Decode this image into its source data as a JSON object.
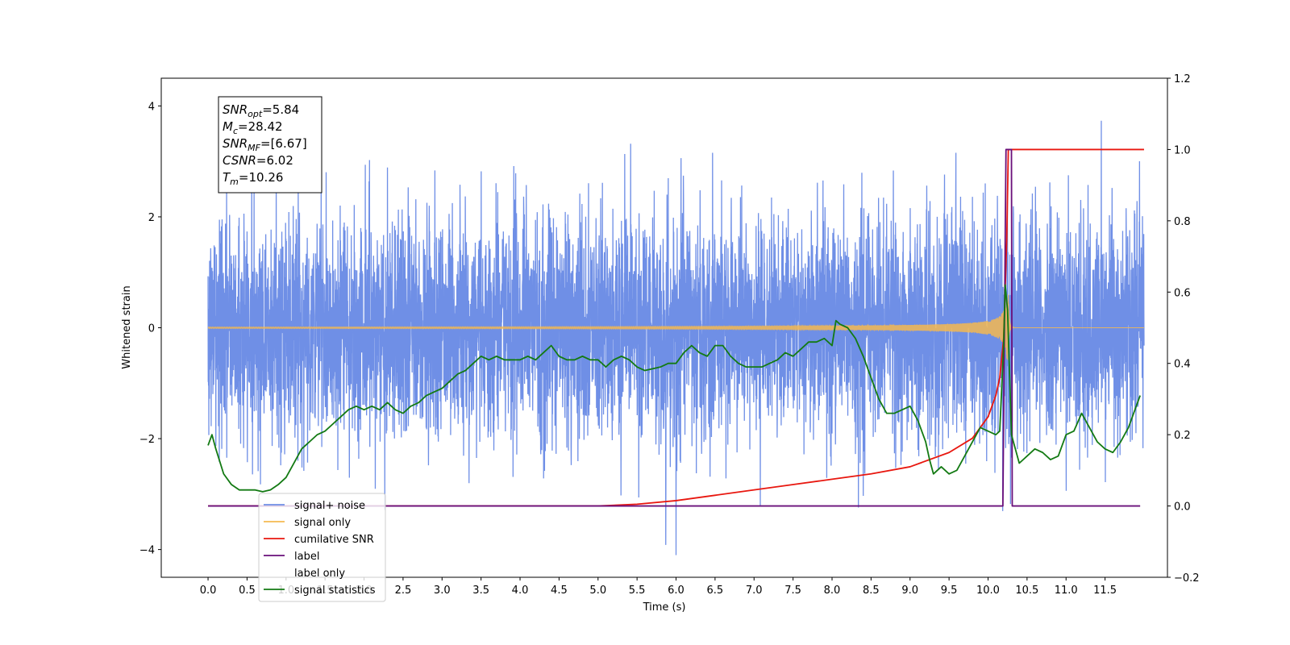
{
  "chart_data": {
    "type": "line",
    "title": "",
    "xlabel": "Time (s)",
    "ylabel": "Whitened strain",
    "y2label": "",
    "xlim": [
      -0.6,
      12.3
    ],
    "ylim": [
      -4.5,
      4.5
    ],
    "y2lim": [
      -0.2,
      1.2
    ],
    "xticks": [
      0.0,
      0.5,
      1.0,
      1.5,
      2.0,
      2.5,
      3.0,
      3.5,
      4.0,
      4.5,
      5.0,
      5.5,
      6.0,
      6.5,
      7.0,
      7.5,
      8.0,
      8.5,
      9.0,
      9.5,
      10.0,
      10.5,
      11.0,
      11.5
    ],
    "xtick_labels": [
      "0.0",
      "0.5",
      "1.0",
      "1.5",
      "2.0",
      "2.5",
      "3.0",
      "3.5",
      "4.0",
      "4.5",
      "5.0",
      "5.5",
      "6.0",
      "6.5",
      "7.0",
      "7.5",
      "8.0",
      "8.5",
      "9.0",
      "9.5",
      "10.0",
      "10.5",
      "11.0",
      "11.5"
    ],
    "yticks": [
      -4,
      -2,
      0,
      2,
      4
    ],
    "ytick_labels": [
      "−4",
      "−2",
      "0",
      "2",
      "4"
    ],
    "y2ticks": [
      -0.2,
      0.0,
      0.2,
      0.4,
      0.6,
      0.8,
      1.0,
      1.2
    ],
    "y2tick_labels": [
      "−0.2",
      "0.0",
      "0.2",
      "0.4",
      "0.6",
      "0.8",
      "1.0",
      "1.2"
    ],
    "grid": false,
    "legend_position": "lower-left",
    "series": [
      {
        "name": "signal+ noise",
        "axis": "left",
        "color": "#6f8fe6",
        "kind": "gaussian-noise",
        "x_range": [
          0.0,
          12.0
        ],
        "mean": 0.0,
        "std": 1.0,
        "approx_range": [
          -4.1,
          4.1
        ]
      },
      {
        "name": "signal only",
        "axis": "left",
        "color": "#f5b950",
        "kind": "chirp",
        "x_range": [
          0.0,
          12.0
        ],
        "merger_time": 10.26,
        "peak_amplitude": 0.6
      },
      {
        "name": "cumilative SNR",
        "axis": "right",
        "color": "#e8170f",
        "x": [
          0.0,
          5.0,
          5.5,
          6.0,
          6.5,
          7.0,
          7.5,
          8.0,
          8.5,
          9.0,
          9.5,
          9.8,
          10.0,
          10.1,
          10.15,
          10.2,
          10.24,
          10.26,
          12.0
        ],
        "values": [
          0.0,
          0.0,
          0.005,
          0.015,
          0.03,
          0.045,
          0.06,
          0.075,
          0.09,
          0.11,
          0.15,
          0.19,
          0.25,
          0.31,
          0.36,
          0.47,
          0.75,
          1.0,
          1.0
        ]
      },
      {
        "name": "label",
        "axis": "right",
        "color": "#6a0f7a",
        "x": [
          0.0,
          10.19,
          10.23,
          10.3,
          10.31,
          11.95
        ],
        "values": [
          0.0,
          0.0,
          1.0,
          1.0,
          0.0,
          0.0
        ]
      },
      {
        "name": "label only",
        "axis": "right",
        "color": "#9a9a9a",
        "hidden": true
      },
      {
        "name": "signal statistics",
        "axis": "right",
        "color": "#137a13",
        "x": [
          0.0,
          0.05,
          0.1,
          0.2,
          0.3,
          0.4,
          0.5,
          0.6,
          0.7,
          0.8,
          0.9,
          1.0,
          1.1,
          1.2,
          1.3,
          1.4,
          1.5,
          1.6,
          1.7,
          1.8,
          1.9,
          2.0,
          2.1,
          2.2,
          2.3,
          2.4,
          2.5,
          2.6,
          2.7,
          2.8,
          2.9,
          3.0,
          3.1,
          3.2,
          3.3,
          3.4,
          3.5,
          3.6,
          3.7,
          3.8,
          3.9,
          4.0,
          4.1,
          4.2,
          4.3,
          4.4,
          4.5,
          4.6,
          4.7,
          4.8,
          4.9,
          5.0,
          5.1,
          5.2,
          5.3,
          5.4,
          5.5,
          5.6,
          5.7,
          5.8,
          5.9,
          6.0,
          6.1,
          6.2,
          6.3,
          6.4,
          6.5,
          6.6,
          6.7,
          6.8,
          6.9,
          7.0,
          7.1,
          7.2,
          7.3,
          7.4,
          7.5,
          7.6,
          7.7,
          7.8,
          7.9,
          8.0,
          8.05,
          8.1,
          8.2,
          8.3,
          8.4,
          8.5,
          8.6,
          8.7,
          8.8,
          8.9,
          9.0,
          9.1,
          9.2,
          9.25,
          9.3,
          9.4,
          9.5,
          9.6,
          9.7,
          9.8,
          9.9,
          10.0,
          10.1,
          10.15,
          10.2,
          10.22,
          10.25,
          10.3,
          10.4,
          10.5,
          10.6,
          10.7,
          10.8,
          10.9,
          11.0,
          11.1,
          11.2,
          11.3,
          11.4,
          11.5,
          11.6,
          11.7,
          11.8,
          11.9,
          11.95
        ],
        "values": [
          0.17,
          0.2,
          0.16,
          0.09,
          0.06,
          0.045,
          0.045,
          0.045,
          0.04,
          0.045,
          0.06,
          0.08,
          0.12,
          0.16,
          0.18,
          0.2,
          0.21,
          0.23,
          0.25,
          0.27,
          0.28,
          0.27,
          0.28,
          0.27,
          0.29,
          0.27,
          0.26,
          0.28,
          0.29,
          0.31,
          0.32,
          0.33,
          0.35,
          0.37,
          0.38,
          0.4,
          0.42,
          0.41,
          0.42,
          0.41,
          0.41,
          0.41,
          0.42,
          0.41,
          0.43,
          0.45,
          0.42,
          0.41,
          0.41,
          0.42,
          0.41,
          0.41,
          0.39,
          0.41,
          0.42,
          0.41,
          0.39,
          0.38,
          0.385,
          0.39,
          0.4,
          0.4,
          0.43,
          0.45,
          0.43,
          0.42,
          0.45,
          0.45,
          0.42,
          0.4,
          0.39,
          0.39,
          0.39,
          0.4,
          0.41,
          0.43,
          0.42,
          0.44,
          0.46,
          0.46,
          0.47,
          0.45,
          0.52,
          0.51,
          0.5,
          0.47,
          0.42,
          0.36,
          0.3,
          0.26,
          0.26,
          0.27,
          0.28,
          0.24,
          0.18,
          0.13,
          0.09,
          0.11,
          0.09,
          0.1,
          0.14,
          0.18,
          0.22,
          0.21,
          0.2,
          0.21,
          0.45,
          0.62,
          0.55,
          0.2,
          0.12,
          0.14,
          0.16,
          0.15,
          0.13,
          0.14,
          0.2,
          0.21,
          0.26,
          0.22,
          0.18,
          0.16,
          0.15,
          0.18,
          0.22,
          0.28,
          0.31
        ]
      }
    ],
    "annotation": {
      "lines": [
        {
          "sym": "SNR",
          "sub": "opt",
          "value": "=5.84"
        },
        {
          "sym": "M",
          "sub": "c",
          "value": "=28.42"
        },
        {
          "sym": "SNR",
          "sub": "MF",
          "value": "=[6.67]"
        },
        {
          "sym": "CSNR",
          "sub": "",
          "value": "=6.02"
        },
        {
          "sym": "T",
          "sub": "m",
          "value": "=10.26"
        }
      ]
    }
  }
}
